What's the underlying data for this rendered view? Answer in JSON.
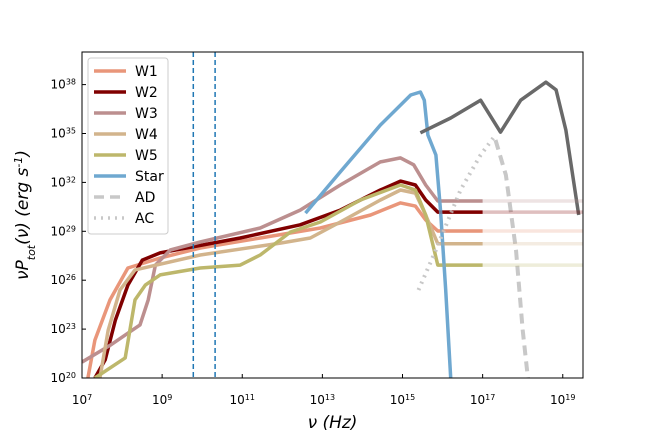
{
  "chart_data": {
    "type": "line",
    "xlabel": "ν (Hz)",
    "ylabel": "νP_tot(ν) (erg s^-1)",
    "xlog": true,
    "ylog": true,
    "xlim": [
      10000000.0,
      3.2e+19
    ],
    "ylim": [
      1e+20,
      1e+40
    ],
    "xticks": [
      {
        "value": 10000000.0,
        "label": "10^7"
      },
      {
        "value": 1000000000.0,
        "label": "10^9"
      },
      {
        "value": 100000000000.0,
        "label": "10^11"
      },
      {
        "value": 10000000000000.0,
        "label": "10^13"
      },
      {
        "value": 1000000000000000.0,
        "label": "10^15"
      },
      {
        "value": 1e+17,
        "label": "10^17"
      },
      {
        "value": 1e+19,
        "label": "10^19"
      }
    ],
    "yticks": [
      {
        "value": 1e+20,
        "label": "10^20"
      },
      {
        "value": 1e+23,
        "label": "10^23"
      },
      {
        "value": 1e+26,
        "label": "10^26"
      },
      {
        "value": 1e+29,
        "label": "10^29"
      },
      {
        "value": 1e+32,
        "label": "10^32"
      },
      {
        "value": 1e+35,
        "label": "10^35"
      },
      {
        "value": 1e+38,
        "label": "10^38"
      }
    ],
    "legend": "upper left",
    "vlines": [
      {
        "value": 6000000000.0,
        "color": "#1f77b4"
      },
      {
        "value": 21000000000.0,
        "color": "#1f77b4"
      }
    ],
    "series": [
      {
        "name": "W1",
        "color": "#e9967a",
        "linestyle": "solid",
        "x": [
          14000000.0,
          21000000.0,
          50000000.0,
          140000000.0,
          890000000.0,
          8900000000.0,
          280000000000.0,
          8900000000000.0,
          160000000000000.0,
          890000000000000.0,
          2100000000000000.0,
          3800000000000000.0,
          7600000000000000.0,
          1e+17
        ],
        "values": [
          1e+20,
          2.1e+22,
          6.2e+24,
          5.6e+26,
          2.3e+27,
          9.5e+27,
          3.9e+28,
          1.6e+29,
          1e+30,
          5.5e+30,
          3.5e+30,
          4.9e+29,
          1.05e+29,
          1.05e+29
        ]
      },
      {
        "name": "W2",
        "color": "#800000",
        "linestyle": "solid",
        "x": [
          21000000.0,
          38000000.0,
          68000000.0,
          140000000.0,
          320000000.0,
          890000000.0,
          89000000000.0,
          2800000000000.0,
          28000000000000.0,
          280000000000000.0,
          890000000000000.0,
          2100000000000000.0,
          3800000000000000.0,
          7600000000000000.0,
          1e+17
        ],
        "values": [
          1e+20,
          1.3e+21,
          3.6e+23,
          5e+25,
          1.7e+27,
          4.7e+27,
          3.9e+28,
          2.5e+29,
          2e+30,
          3.4e+31,
          1.2e+32,
          6.9e+31,
          8.3e+30,
          1.5e+30,
          1.5e+30
        ]
      },
      {
        "name": "W3",
        "color": "#bc8f8f",
        "linestyle": "solid",
        "x": [
          10000000.0,
          50000000.0,
          280000000.0,
          450000000.0,
          680000000.0,
          1600000000.0,
          8900000000.0,
          280000000000.0,
          2800000000000.0,
          28000000000000.0,
          280000000000000.0,
          890000000000000.0,
          1900000000000000.0,
          3800000000000000.0,
          7600000000000000.0,
          1e+17
        ],
        "values": [
          9.5e+20,
          1e+22,
          1.8e+23,
          6.2e+24,
          8.5e+26,
          7.1e+27,
          2.2e+28,
          1.6e+29,
          2e+30,
          6.9e+31,
          1.8e+33,
          3.2e+33,
          1.2e+33,
          6.9e+31,
          7.2e+30,
          7.2e+30
        ]
      },
      {
        "name": "W4",
        "color": "#d2b48c",
        "linestyle": "solid",
        "x": [
          28000000.0,
          45000000.0,
          89000000.0,
          210000000.0,
          8900000000.0,
          890000000000.0,
          5000000000000.0,
          28000000000000.0,
          280000000000000.0,
          890000000000000.0,
          2100000000000000.0,
          3800000000000000.0,
          7600000000000000.0,
          1e+17
        ],
        "values": [
          1e+20,
          8.7e+22,
          2.5e+25,
          4.3e+26,
          3.5e+27,
          1.9e+28,
          3.9e+28,
          3.7e+29,
          8.3e+30,
          3.4e+31,
          2.2e+31,
          1e+30,
          1.7e+28,
          1.7e+28
        ]
      },
      {
        "name": "W5",
        "color": "#bdb76b",
        "linestyle": "solid",
        "x": [
          21000000.0,
          120000000.0,
          210000000.0,
          380000000.0,
          890000000.0,
          8900000000.0,
          89000000000.0,
          280000000000.0,
          1600000000000.0,
          8900000000000.0,
          89000000000000.0,
          890000000000000.0,
          2100000000000000.0,
          3800000000000000.0,
          7600000000000000.0,
          1e+17
        ],
        "values": [
          1e+20,
          1.7e+21,
          6.2e+24,
          5e+25,
          2.1e+26,
          5.6e+26,
          8.5e+26,
          3.5e+27,
          9.1e+28,
          3.7e+29,
          8.3e+30,
          6.9e+31,
          3.4e+31,
          1e+30,
          8.5e+26,
          8.5e+26
        ]
      },
      {
        "name": "Star",
        "color": "#6fa8d0",
        "linestyle": "solid",
        "x": [
          3800000000000.0,
          28000000000000.0,
          280000000000000.0,
          1600000000000000.0,
          2800000000000000.0,
          3500000000000000.0,
          4300000000000000.0,
          6800000000000000.0,
          8900000000000000.0,
          1.2e+16,
          1.6e+16
        ],
        "values": [
          1.3e+30,
          4.4e+32,
          3.3e+35,
          2.3e+37,
          3.5e+37,
          1.1e+37,
          8.1e+34,
          4.8e+33,
          2e+30,
          2.5e+25,
          1e+20
        ]
      },
      {
        "name": "AD",
        "color": "#c8c8c8",
        "linestyle": "dashed",
        "x": [
          2.1e+17,
          3.8e+17,
          6.8e+17,
          1e+18,
          1.35e+18
        ],
        "values": [
          4e+34,
          2.8e+32,
          7.1e+27,
          8.7e+22,
          1e+20
        ]
      },
      {
        "name": "AC",
        "color": "#c8c8c8",
        "linestyle": "dotted",
        "x": [
          2500000000000000.0,
          6800000000000000.0,
          2.8e+16,
          8.9e+16,
          2.1e+17
        ],
        "values": [
          2.5e+25,
          7.1e+27,
          3.4e+31,
          4.8e+33,
          8.1e+34
        ]
      },
      {
        "color": "#696969",
        "linestyle": "solid",
        "x": [
          2800000000000000.0,
          1.6e+16,
          8.9e+16,
          2.8e+17,
          8.9e+17,
          3.8e+18,
          6.8e+18,
          1.2e+19,
          2.5e+19
        ],
        "values": [
          1.1e+35,
          8.9e+35,
          1.1e+37,
          1.2e+35,
          1.1e+37,
          1.4e+38,
          4.7e+37,
          1.6e+35,
          1e+30
        ]
      },
      {
        "color": "#e9967a",
        "linestyle": "solid",
        "alpha": 0.25,
        "x": [
          7600000000000000.0,
          3.2e+19
        ],
        "values": [
          1.05e+29,
          1.05e+29
        ]
      },
      {
        "color": "#800000",
        "linestyle": "solid",
        "alpha": 0.25,
        "x": [
          7600000000000000.0,
          3.2e+19
        ],
        "values": [
          1.5e+30,
          1.5e+30
        ]
      },
      {
        "color": "#bc8f8f",
        "linestyle": "solid",
        "alpha": 0.25,
        "x": [
          7600000000000000.0,
          3.2e+19
        ],
        "values": [
          7.2e+30,
          7.2e+30
        ]
      },
      {
        "color": "#d2b48c",
        "linestyle": "solid",
        "alpha": 0.25,
        "x": [
          7600000000000000.0,
          3.2e+19
        ],
        "values": [
          1.7e+28,
          1.7e+28
        ]
      },
      {
        "color": "#bdb76b",
        "linestyle": "solid",
        "alpha": 0.25,
        "x": [
          7600000000000000.0,
          3.2e+19
        ],
        "values": [
          8.5e+26,
          8.5e+26
        ]
      }
    ]
  }
}
